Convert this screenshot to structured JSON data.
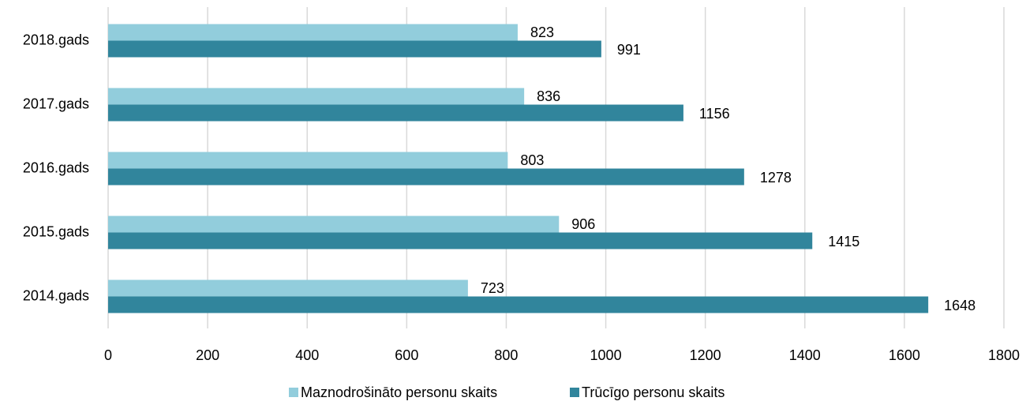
{
  "chart_data": {
    "type": "hbar",
    "categories": [
      "2018.gads",
      "2017.gads",
      "2016.gads",
      "2015.gads",
      "2014.gads"
    ],
    "series": [
      {
        "name": "Maznodrošināto personu skaits",
        "color": "#92cddc",
        "values": [
          823,
          836,
          803,
          906,
          723
        ]
      },
      {
        "name": "Trūcīgo personu skaits",
        "color": "#31859c",
        "values": [
          991,
          1156,
          1278,
          1415,
          1648
        ]
      }
    ],
    "xlim": [
      0,
      1800
    ],
    "xticks": [
      0,
      200,
      400,
      600,
      800,
      1000,
      1200,
      1400,
      1600,
      1800
    ],
    "grid": true,
    "legend": "bottom"
  }
}
